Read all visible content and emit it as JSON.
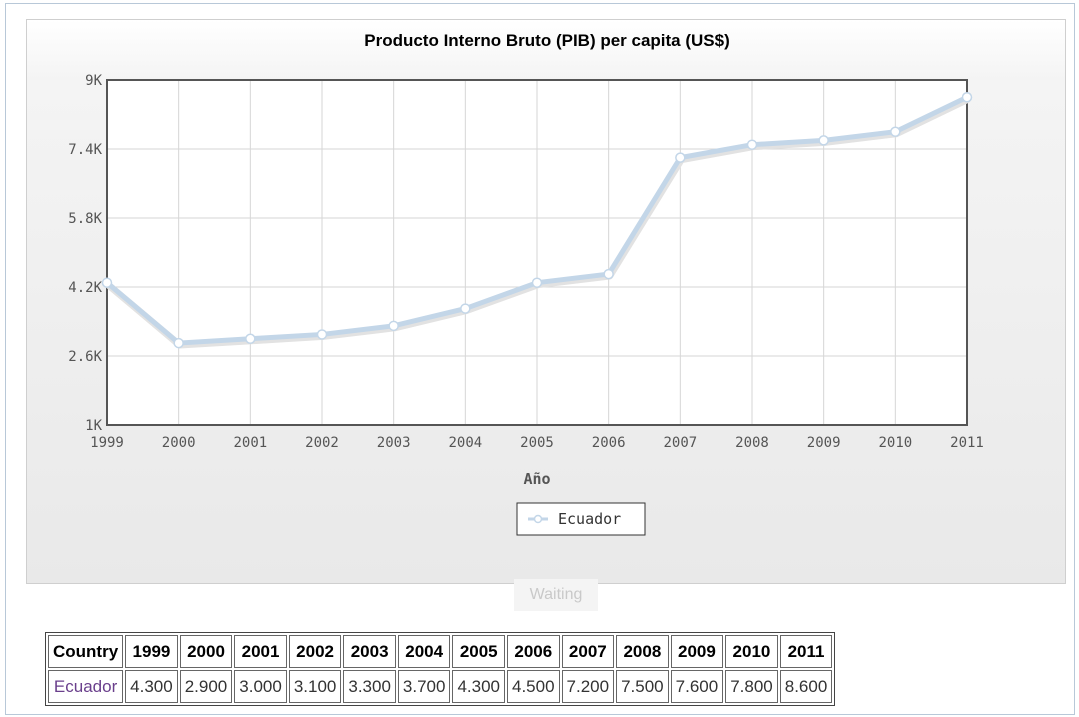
{
  "chart_data": {
    "type": "line",
    "title": "Producto Interno Bruto (PIB) per capita (US$)",
    "xlabel": "Año",
    "ylabel": "",
    "x": [
      "1999",
      "2000",
      "2001",
      "2002",
      "2003",
      "2004",
      "2005",
      "2006",
      "2007",
      "2008",
      "2009",
      "2010",
      "2011"
    ],
    "series": [
      {
        "name": "Ecuador",
        "values": [
          4300,
          2900,
          3000,
          3100,
          3300,
          3700,
          4300,
          4500,
          7200,
          7500,
          7600,
          7800,
          8600
        ]
      }
    ],
    "ylim": [
      1000,
      9000
    ],
    "yticks": [
      "1K",
      "2.6K",
      "4.2K",
      "5.8K",
      "7.4K",
      "9K"
    ],
    "ytick_values": [
      1000,
      2600,
      4200,
      5800,
      7400,
      9000
    ],
    "grid": true,
    "legend_position": "bottom-center",
    "line_color": "#c3d6e8"
  },
  "status": {
    "waiting_label": "Waiting"
  },
  "table": {
    "header_country": "Country",
    "years": [
      "1999",
      "2000",
      "2001",
      "2002",
      "2003",
      "2004",
      "2005",
      "2006",
      "2007",
      "2008",
      "2009",
      "2010",
      "2011"
    ],
    "rows": [
      {
        "country": "Ecuador",
        "values": [
          "4.300",
          "2.900",
          "3.000",
          "3.100",
          "3.300",
          "3.700",
          "4.300",
          "4.500",
          "7.200",
          "7.500",
          "7.600",
          "7.800",
          "8.600"
        ]
      }
    ]
  }
}
